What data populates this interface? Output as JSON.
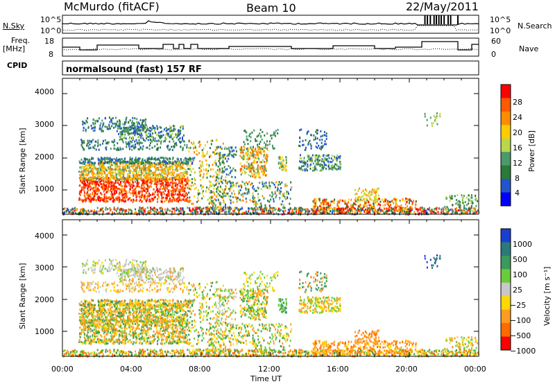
{
  "header": {
    "station": "McMurdo (fitACF)",
    "beam": "Beam 10",
    "date": "22/May/2011"
  },
  "top_panels": {
    "nsky_label": "N.Sky",
    "nsearch_label": "N.Search",
    "freq_label_1": "Freq.",
    "freq_label_2": "[MHz]",
    "nave_label": "Nave",
    "cpid_label": "CPID",
    "cpid_text": "normalsound (fast) 157 RF",
    "ticks_left_noise": [
      "10^5",
      "10^0"
    ],
    "ticks_right_noise": [
      "10^5",
      "10^0"
    ],
    "ticks_left_freq": [
      "18",
      "8"
    ],
    "ticks_right_nave": [
      "60",
      "0"
    ]
  },
  "colors": {
    "power_scale": [
      "#0000ff",
      "#2255cc",
      "#2a7a3a",
      "#4a9a6a",
      "#b8d84a",
      "#ffcc00",
      "#ff8c00",
      "#ff5a00",
      "#ff0000"
    ],
    "velocity_scale": [
      "#1a3fd0",
      "#2a7a7a",
      "#3a9a5a",
      "#6acc3a",
      "#c8c8c8",
      "#ffd800",
      "#ff9c20",
      "#ff6a00",
      "#ff0000"
    ]
  },
  "chart_data": [
    {
      "type": "heatmap",
      "title": "Power",
      "xlabel": "Time UT",
      "ylabel": "Slant Range [km]",
      "x_ticks": [
        "00:00",
        "04:00",
        "08:00",
        "12:00",
        "16:00",
        "20:00",
        "00:00"
      ],
      "y_ticks": [
        1000,
        2000,
        3000,
        4000
      ],
      "ylim": [
        200,
        4500
      ],
      "colorbar_label": "Power [dB]",
      "colorbar_ticks": [
        "4",
        "8",
        "12",
        "16",
        "20",
        "24",
        "28"
      ]
    },
    {
      "type": "heatmap",
      "title": "Velocity",
      "xlabel": "Time UT",
      "ylabel": "Slant Range [km]",
      "x_ticks": [
        "00:00",
        "04:00",
        "08:00",
        "12:00",
        "16:00",
        "20:00",
        "00:00"
      ],
      "y_ticks": [
        1000,
        2000,
        3000,
        4000
      ],
      "ylim": [
        200,
        4500
      ],
      "colorbar_label": "Velocity [m s⁻¹]",
      "colorbar_ticks": [
        "1000",
        "500",
        "100",
        "25",
        "−25",
        "−100",
        "−500",
        "−1000"
      ]
    }
  ]
}
